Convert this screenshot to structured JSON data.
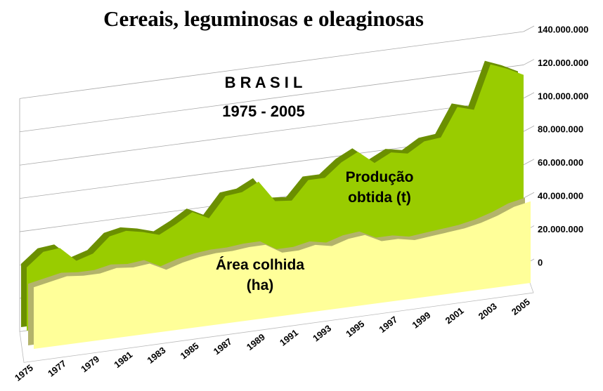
{
  "chart_data": {
    "type": "area3d",
    "title": "Cereais, leguminosas e oleaginosas",
    "annotations": [
      "B R A S I L",
      "1975 - 2005"
    ],
    "categories": [
      "1975",
      null,
      "1977",
      null,
      "1979",
      null,
      "1981",
      null,
      "1983",
      null,
      "1985",
      null,
      "1987",
      null,
      "1989",
      null,
      "1991",
      null,
      "1993",
      null,
      "1995",
      null,
      "1997",
      null,
      "1999",
      null,
      "2001",
      null,
      "2003",
      null,
      "2005"
    ],
    "series": [
      {
        "name": "Produção obtida (t)",
        "color": "#99cc00",
        "values": [
          38000000,
          46000000,
          47000000,
          38000000,
          41000000,
          50000000,
          52000000,
          50000000,
          47000000,
          52000000,
          58000000,
          53000000,
          65000000,
          66000000,
          71000000,
          58000000,
          57000000,
          68000000,
          68000000,
          76000000,
          81000000,
          73000000,
          78000000,
          76000000,
          82000000,
          83000000,
          100000000,
          97000000,
          123000000,
          119000000,
          114000000
        ]
      },
      {
        "name": "Área colhida (ha)",
        "color": "#ffff99",
        "values": [
          37000000,
          39000000,
          41000000,
          40000000,
          40000000,
          42000000,
          41000000,
          42000000,
          37000000,
          40000000,
          42000000,
          43000000,
          43000000,
          44000000,
          44000000,
          38000000,
          38000000,
          40000000,
          38000000,
          41000000,
          42000000,
          37000000,
          37000000,
          35000000,
          36000000,
          37000000,
          38000000,
          40000000,
          43000000,
          47000000,
          49000000
        ]
      }
    ],
    "ylim": [
      0,
      140000000
    ],
    "yticks": [
      0,
      {
        "value": 20000000,
        "label": "20.000.000"
      },
      {
        "value": 40000000,
        "label": "40.000.000"
      },
      {
        "value": 60000000,
        "label": "60.000.000"
      },
      {
        "value": 80000000,
        "label": "80.000.000"
      },
      {
        "value": 100000000,
        "label": "100.000.000"
      },
      {
        "value": 120000000,
        "label": "120.000.000"
      },
      {
        "value": 140000000,
        "label": "140.000.000"
      }
    ],
    "grid": true
  }
}
